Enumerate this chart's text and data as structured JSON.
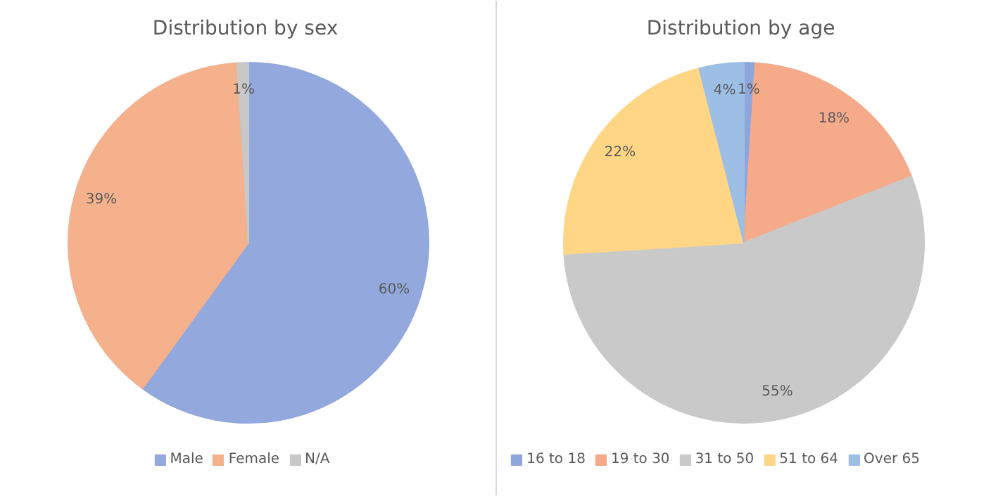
{
  "chart_data": [
    {
      "type": "pie",
      "title": "Distribution  by sex",
      "categories": [
        "Male",
        "Female",
        "N/A"
      ],
      "values": [
        60,
        39,
        1
      ],
      "value_labels": [
        "60%",
        "39%",
        "1%"
      ],
      "colors": [
        "#93a8dc",
        "#f5b08c",
        "#c8c8c8"
      ],
      "legend": "bottom"
    },
    {
      "type": "pie",
      "title": "Distribution  by age",
      "categories": [
        "16 to 18",
        "19 to 30",
        "31 to 50",
        "51 to 64",
        "Over 65"
      ],
      "values": [
        1,
        18,
        55,
        22,
        4
      ],
      "value_labels": [
        "1%",
        "18%",
        "55%",
        "22%",
        "4%"
      ],
      "colors": [
        "#8fa6dc",
        "#f5ab8a",
        "#c9c9c9",
        "#fed685",
        "#9dbfe6"
      ],
      "legend": "bottom"
    }
  ]
}
